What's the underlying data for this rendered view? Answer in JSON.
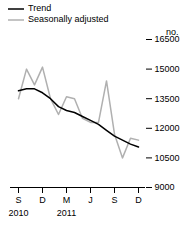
{
  "chart_data": {
    "type": "line",
    "categories": [
      "S",
      null,
      null,
      "D",
      null,
      null,
      "M",
      null,
      null,
      "J",
      null,
      null,
      "S",
      null,
      null,
      "D"
    ],
    "annotations": [
      {
        "text": "2010",
        "at": 0
      },
      {
        "text": "2011",
        "at": 6
      }
    ],
    "y_label": "no.",
    "series": [
      {
        "name": "Trend",
        "color": "#000000",
        "values": [
          13900,
          14000,
          14000,
          13800,
          13500,
          13100,
          12900,
          12800,
          12600,
          12400,
          12200,
          11900,
          11600,
          11400,
          11200,
          11050
        ]
      },
      {
        "name": "Seasonally adjusted",
        "color": "#b0b0b0",
        "values": [
          13500,
          15000,
          14200,
          15100,
          13500,
          12700,
          13600,
          13500,
          12500,
          12300,
          12300,
          14400,
          11700,
          10500,
          11500,
          11400
        ]
      }
    ],
    "ylim": [
      9000,
      16500
    ],
    "yticks": [
      9000,
      10500,
      12000,
      13500,
      15000,
      16500
    ]
  }
}
